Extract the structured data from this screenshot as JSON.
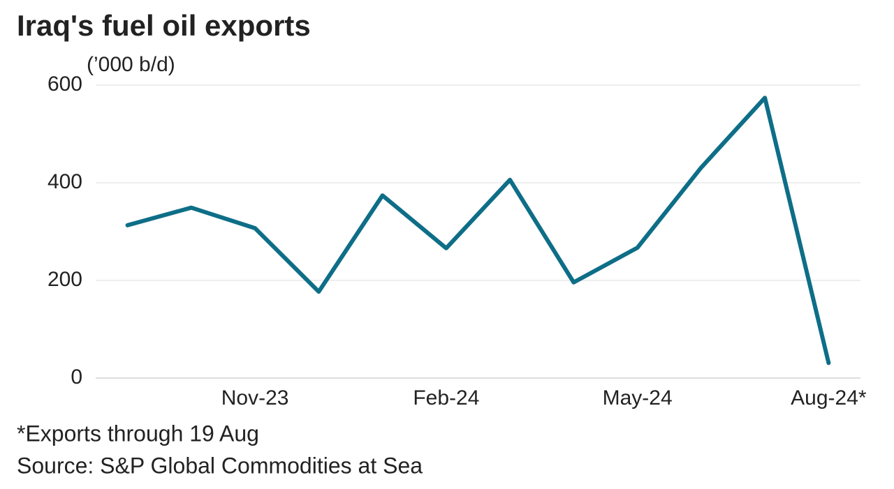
{
  "chart_data": {
    "type": "line",
    "title": "Iraq's fuel oil exports",
    "subtitle": "(’000 b/d)",
    "categories": [
      null,
      null,
      "Nov-23",
      null,
      null,
      "Feb-24",
      null,
      null,
      "May-24",
      null,
      null,
      "Aug-24*"
    ],
    "series": [
      {
        "name": "Fuel oil exports",
        "color": "#0e6e87",
        "values": [
          313,
          349,
          307,
          177,
          374,
          266,
          406,
          196,
          267,
          431,
          574,
          31
        ]
      }
    ],
    "ylim": [
      0,
      600
    ],
    "yticks": [
      0,
      200,
      400,
      600
    ],
    "grid": true,
    "notes": [
      "*Exports through 19 Aug",
      "Source: S&P Global Commodities at Sea"
    ]
  }
}
